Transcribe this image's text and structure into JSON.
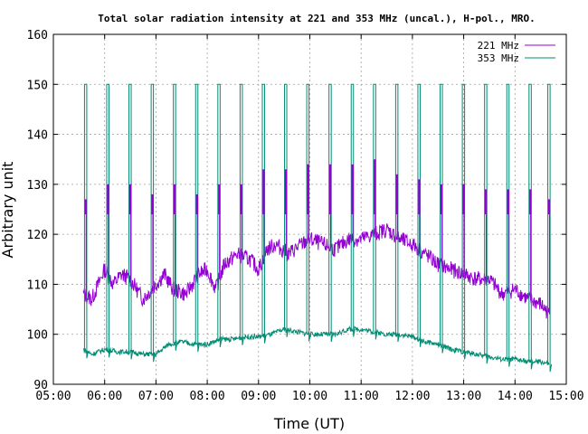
{
  "chart_data": {
    "type": "line",
    "title": "Total solar radiation intensity at 221 and 353 MHz (uncal.), H-pol., MRO.",
    "xlabel": "Time (UT)",
    "ylabel": "Arbitrary unit",
    "xlim": [
      "05:00",
      "15:00"
    ],
    "ylim": [
      90,
      160
    ],
    "x_ticks": [
      "05:00",
      "06:00",
      "07:00",
      "08:00",
      "09:00",
      "10:00",
      "11:00",
      "12:00",
      "13:00",
      "14:00",
      "15:00"
    ],
    "y_ticks": [
      90,
      100,
      110,
      120,
      130,
      140,
      150,
      160
    ],
    "grid": true,
    "legend_position": "top-right",
    "calibration_spikes": {
      "x": [
        "05:38",
        "06:04",
        "06:30",
        "06:56",
        "07:22",
        "07:48",
        "08:14",
        "08:40",
        "09:06",
        "09:32",
        "09:58",
        "10:24",
        "10:50",
        "11:16",
        "11:42",
        "12:08",
        "12:34",
        "13:00",
        "13:26",
        "13:52",
        "14:18",
        "14:40"
      ],
      "top_353": 150,
      "top_221": [
        127,
        130,
        130,
        128,
        130,
        128,
        130,
        130,
        133,
        133,
        134,
        134,
        134,
        135,
        132,
        131,
        130,
        130,
        129,
        129,
        129,
        127
      ]
    },
    "series": [
      {
        "name": "221 MHz",
        "color": "#9400d3",
        "x": [
          "05:35",
          "05:45",
          "06:00",
          "06:10",
          "06:20",
          "06:30",
          "06:45",
          "07:00",
          "07:10",
          "07:20",
          "07:35",
          "07:50",
          "08:00",
          "08:10",
          "08:20",
          "08:35",
          "08:50",
          "09:00",
          "09:10",
          "09:20",
          "09:35",
          "09:50",
          "10:00",
          "10:15",
          "10:30",
          "10:45",
          "11:00",
          "11:15",
          "11:30",
          "11:45",
          "12:00",
          "12:15",
          "12:30",
          "12:45",
          "13:00",
          "13:15",
          "13:30",
          "13:45",
          "14:00",
          "14:15",
          "14:30",
          "14:40"
        ],
        "values": [
          108,
          107,
          113,
          110,
          112,
          111,
          107,
          110,
          112,
          109,
          108,
          112,
          113,
          109,
          114,
          116,
          115,
          113,
          117,
          118,
          116,
          118,
          119,
          118,
          117,
          119,
          119,
          120,
          121,
          119,
          118,
          116,
          114,
          113,
          112,
          111,
          111,
          108,
          109,
          107,
          106,
          104
        ]
      },
      {
        "name": "353 MHz",
        "color": "#008b72",
        "x": [
          "05:35",
          "05:45",
          "06:00",
          "06:15",
          "06:30",
          "06:45",
          "07:00",
          "07:15",
          "07:30",
          "07:45",
          "08:00",
          "08:15",
          "08:30",
          "08:45",
          "09:00",
          "09:15",
          "09:30",
          "09:45",
          "10:00",
          "10:15",
          "10:30",
          "10:45",
          "11:00",
          "11:15",
          "11:30",
          "11:45",
          "12:00",
          "12:15",
          "12:30",
          "12:45",
          "13:00",
          "13:15",
          "13:30",
          "13:45",
          "14:00",
          "14:15",
          "14:30",
          "14:40"
        ],
        "values": [
          97,
          96,
          97,
          96.5,
          96.5,
          96,
          96,
          98,
          98.5,
          98,
          98,
          99,
          99,
          99.5,
          99.5,
          100,
          101,
          100.5,
          100,
          100,
          100,
          101,
          101,
          100.5,
          100,
          100,
          99.5,
          98.5,
          98,
          97,
          96.5,
          96,
          95.5,
          95,
          95,
          94.5,
          94.5,
          94
        ]
      }
    ]
  }
}
